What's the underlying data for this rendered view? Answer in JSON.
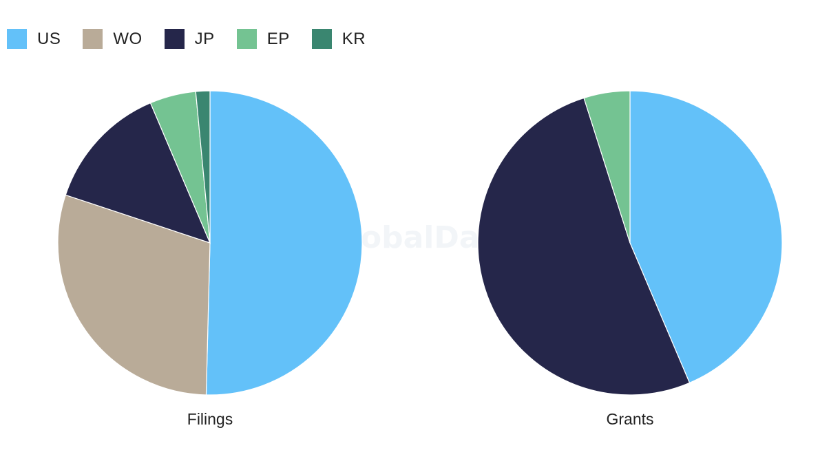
{
  "watermark": "GlobalData",
  "legend": [
    {
      "label": "US",
      "color": "#63c1f9"
    },
    {
      "label": "WO",
      "color": "#b9ab98"
    },
    {
      "label": "JP",
      "color": "#25264a"
    },
    {
      "label": "EP",
      "color": "#74c392"
    },
    {
      "label": "KR",
      "color": "#3a8670"
    }
  ],
  "chart_data": [
    {
      "type": "pie",
      "title": "Filings",
      "categories": [
        "US",
        "WO",
        "JP",
        "EP",
        "KR"
      ],
      "values": [
        50.4,
        29.7,
        13.5,
        4.9,
        1.5
      ],
      "colors": [
        "#63c1f9",
        "#b9ab98",
        "#25264a",
        "#74c392",
        "#3a8670"
      ],
      "start": "12 o'clock",
      "direction": "clockwise",
      "legend_position": "top-left"
    },
    {
      "type": "pie",
      "title": "Grants",
      "categories": [
        "US",
        "JP",
        "EP"
      ],
      "values": [
        43.6,
        51.5,
        4.9
      ],
      "colors": [
        "#63c1f9",
        "#25264a",
        "#74c392"
      ],
      "start": "12 o'clock",
      "direction": "clockwise",
      "legend_position": "top-left"
    }
  ]
}
